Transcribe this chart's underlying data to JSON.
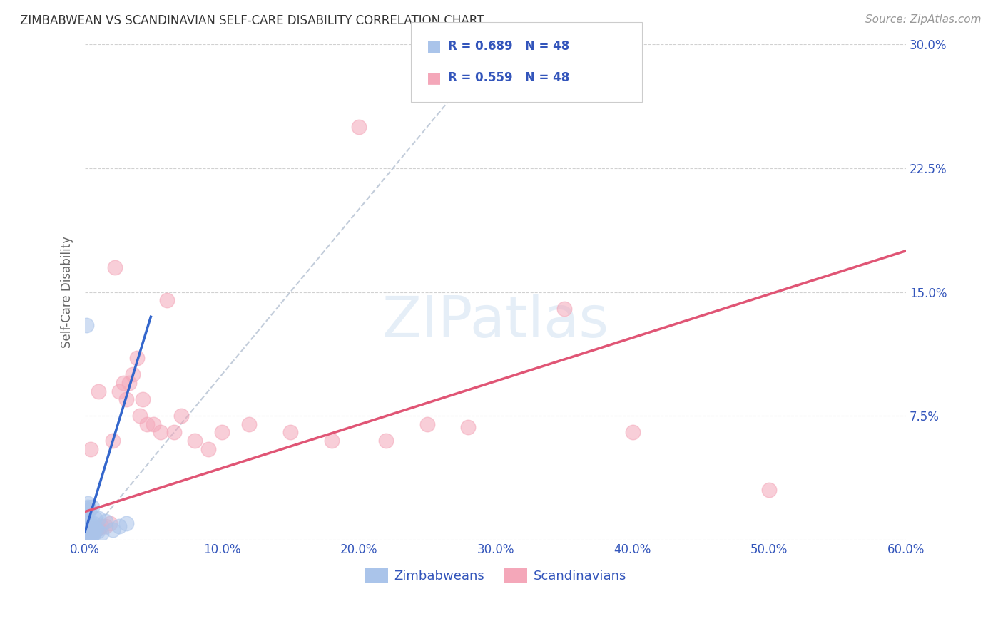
{
  "title": "ZIMBABWEAN VS SCANDINAVIAN SELF-CARE DISABILITY CORRELATION CHART",
  "source": "Source: ZipAtlas.com",
  "xlabel_ticks": [
    "0.0%",
    "10.0%",
    "20.0%",
    "30.0%",
    "40.0%",
    "50.0%",
    "60.0%"
  ],
  "ylabel_ticks": [
    "7.5%",
    "15.0%",
    "22.5%",
    "30.0%"
  ],
  "ylabel_label": "Self-Care Disability",
  "xlim": [
    0.0,
    0.6
  ],
  "ylim": [
    0.0,
    0.3
  ],
  "legend_r_blue": "R = 0.689",
  "legend_n_blue": "N = 48",
  "legend_r_pink": "R = 0.559",
  "legend_n_pink": "N = 48",
  "legend_label_blue": "Zimbabweans",
  "legend_label_pink": "Scandinavians",
  "blue_color": "#aac4ea",
  "pink_color": "#f4a7b9",
  "blue_line_color": "#3366cc",
  "pink_line_color": "#e05575",
  "diag_color": "#b8c4d4",
  "text_color": "#3355bb",
  "background_color": "#ffffff",
  "zim_x": [
    0.001,
    0.001,
    0.001,
    0.001,
    0.001,
    0.001,
    0.001,
    0.001,
    0.001,
    0.001,
    0.002,
    0.002,
    0.002,
    0.002,
    0.002,
    0.002,
    0.002,
    0.003,
    0.003,
    0.003,
    0.003,
    0.003,
    0.004,
    0.004,
    0.004,
    0.005,
    0.005,
    0.005,
    0.006,
    0.006,
    0.007,
    0.007,
    0.008,
    0.009,
    0.01,
    0.012,
    0.015,
    0.02,
    0.025,
    0.03,
    0.001,
    0.002,
    0.003,
    0.001,
    0.002,
    0.003,
    0.004,
    0.005
  ],
  "zim_y": [
    0.003,
    0.004,
    0.005,
    0.006,
    0.007,
    0.008,
    0.01,
    0.012,
    0.015,
    0.001,
    0.002,
    0.003,
    0.004,
    0.005,
    0.007,
    0.009,
    0.02,
    0.003,
    0.005,
    0.007,
    0.009,
    0.002,
    0.004,
    0.007,
    0.01,
    0.005,
    0.008,
    0.02,
    0.004,
    0.01,
    0.007,
    0.013,
    0.006,
    0.005,
    0.013,
    0.004,
    0.011,
    0.006,
    0.008,
    0.01,
    0.019,
    0.022,
    0.001,
    0.13,
    0.005,
    0.018,
    0.001,
    0.003
  ],
  "scand_x": [
    0.001,
    0.001,
    0.002,
    0.002,
    0.003,
    0.003,
    0.004,
    0.004,
    0.005,
    0.005,
    0.006,
    0.007,
    0.008,
    0.009,
    0.01,
    0.01,
    0.012,
    0.015,
    0.018,
    0.02,
    0.022,
    0.025,
    0.028,
    0.03,
    0.032,
    0.035,
    0.038,
    0.04,
    0.042,
    0.045,
    0.05,
    0.055,
    0.06,
    0.065,
    0.07,
    0.08,
    0.09,
    0.1,
    0.12,
    0.15,
    0.18,
    0.22,
    0.25,
    0.28,
    0.35,
    0.4,
    0.5,
    0.2
  ],
  "scand_y": [
    0.003,
    0.005,
    0.003,
    0.005,
    0.004,
    0.006,
    0.004,
    0.055,
    0.005,
    0.007,
    0.005,
    0.006,
    0.006,
    0.007,
    0.007,
    0.09,
    0.008,
    0.008,
    0.01,
    0.06,
    0.165,
    0.09,
    0.095,
    0.085,
    0.095,
    0.1,
    0.11,
    0.075,
    0.085,
    0.07,
    0.07,
    0.065,
    0.145,
    0.065,
    0.075,
    0.06,
    0.055,
    0.065,
    0.07,
    0.065,
    0.06,
    0.06,
    0.07,
    0.068,
    0.14,
    0.065,
    0.03,
    0.25
  ],
  "zim_line_x": [
    0.0,
    0.048
  ],
  "zim_line_y": [
    0.005,
    0.135
  ],
  "scand_line_x": [
    0.0,
    0.6
  ],
  "scand_line_y": [
    0.017,
    0.175
  ],
  "diag_line_x": [
    0.0,
    0.3
  ],
  "diag_line_y": [
    0.0,
    0.3
  ]
}
